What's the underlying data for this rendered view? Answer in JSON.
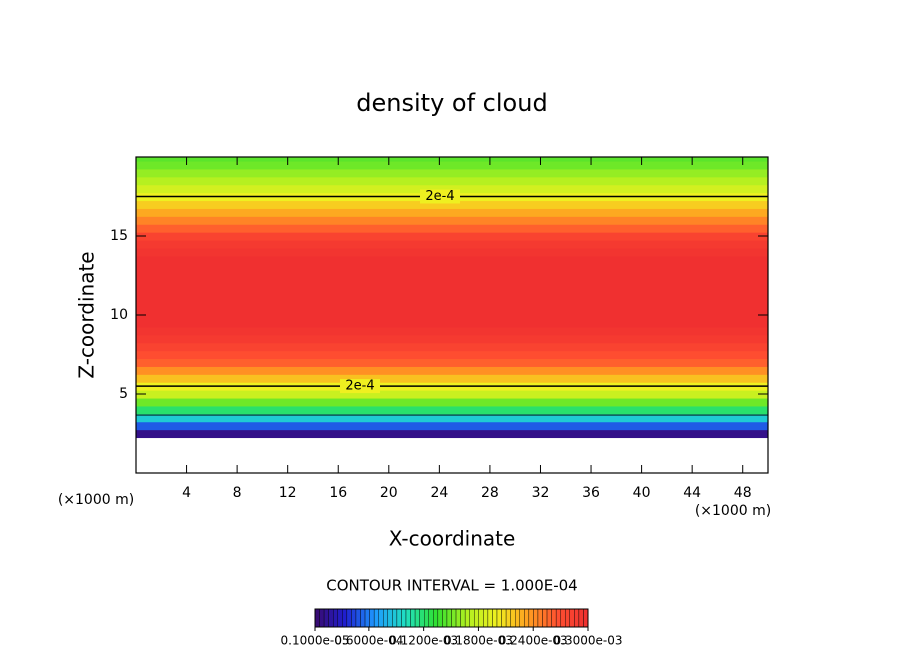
{
  "chart_data": {
    "type": "contour",
    "title": "density of cloud",
    "x_label": "X-coordinate",
    "y_label": "Z-coordinate",
    "x_unit": "(×1000 m)",
    "y_unit": "(×1000 m)",
    "annotation": "CONTOUR INTERVAL = 1.000E-04",
    "xlim": [
      0,
      50
    ],
    "xticks": [
      4,
      8,
      12,
      16,
      20,
      24,
      28,
      32,
      36,
      40,
      44,
      48
    ],
    "ylim": [
      0,
      20
    ],
    "yticks": [
      5,
      10,
      15
    ],
    "z": [
      2.5,
      3,
      3.5,
      4,
      4.5,
      5,
      5.5,
      6,
      6.5,
      7,
      7.5,
      8,
      8.5,
      9,
      9.5,
      10,
      10.5,
      11,
      11.5,
      12,
      12.5,
      13,
      13.5,
      14,
      14.5,
      15,
      15.5,
      16,
      16.5,
      17,
      17.5,
      18,
      18.5,
      19,
      19.5,
      20
    ],
    "values": [
      1e-05,
      5e-05,
      9e-05,
      0.00012,
      0.00015,
      0.00018,
      0.0002,
      0.00022,
      0.00024,
      0.00026,
      0.00027,
      0.00028,
      0.00029,
      0.000295,
      0.0003,
      0.0003,
      0.0003,
      0.0003,
      0.0003,
      0.0003,
      0.0003,
      0.0003,
      0.0003,
      0.000295,
      0.00029,
      0.00028,
      0.00026,
      0.000245,
      0.00023,
      0.000215,
      0.0002,
      0.000185,
      0.00017,
      0.00016,
      0.00015,
      0.000145
    ],
    "contour_levels": [
      0.0001,
      0.0002
    ],
    "contour_label": "2e-4",
    "clim": [
      1e-06,
      0.0003
    ],
    "colormap": [
      "#3a0a6e",
      "#1f1fd0",
      "#1e9bff",
      "#20e0c0",
      "#30e030",
      "#b0f020",
      "#f0f020",
      "#ffa020",
      "#ff5030",
      "#f03030"
    ],
    "cbticks": [
      {
        "value": 1e-06,
        "label": "0.1000e-05"
      },
      {
        "value": 6e-05,
        "label": "0.6000e-04"
      },
      {
        "value": 0.00012,
        "label": "0.1200e-03"
      },
      {
        "value": 0.00018,
        "label": "0.1800e-03"
      },
      {
        "value": 0.00024,
        "label": "0.2400e-03"
      },
      {
        "value": 0.0003,
        "label": "0.3000e-03"
      }
    ]
  }
}
